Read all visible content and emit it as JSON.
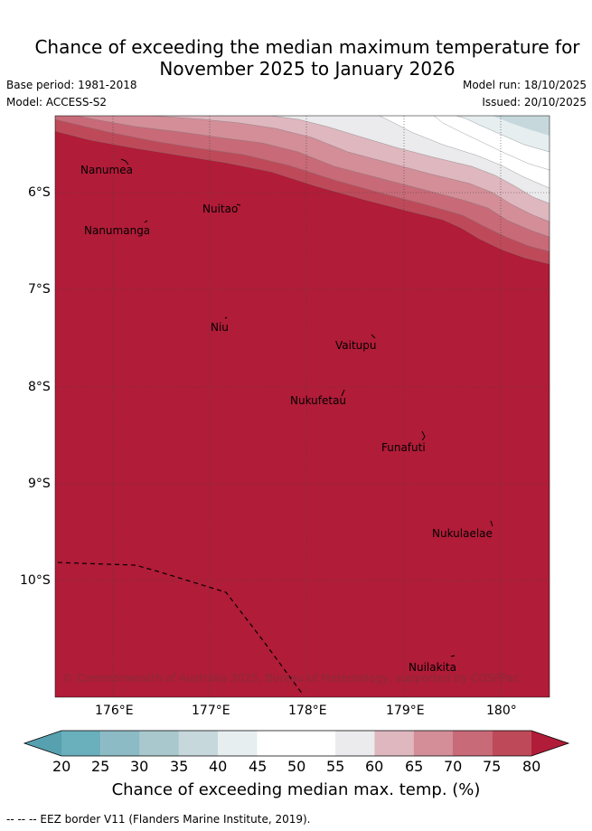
{
  "title": {
    "line1": "Chance of exceeding the median maximum temperature for",
    "line2": "November 2025 to January 2026"
  },
  "meta": {
    "base_period": "Base period: 1981-2018",
    "model": "Model: ACCESS-S2",
    "model_run": "Model run: 18/10/2025",
    "issued": "Issued: 20/10/2025"
  },
  "axes": {
    "lat_labels": [
      "6°S",
      "7°S",
      "8°S",
      "9°S",
      "10°S"
    ],
    "lon_labels": [
      "176°E",
      "177°E",
      "178°E",
      "179°E",
      "180°"
    ]
  },
  "places": {
    "nanumea": "Nanumea",
    "nuitao": "Nuitao",
    "nanumanga": "Nanumanga",
    "niu": "Niu",
    "vaitupu": "Vaitupu",
    "nukufetau": "Nukufetau",
    "funafuti": "Funafuti",
    "nukulaelae": "Nukulaelae",
    "nuilakita": "Nuilakita"
  },
  "copyright": "© Commonwealth of Australia 2025, Bureau of Meteorology, supported by COSPPac",
  "colorbar": {
    "labels": [
      "20",
      "25",
      "30",
      "35",
      "40",
      "45",
      "50",
      "55",
      "60",
      "65",
      "70",
      "75",
      "80"
    ],
    "colors": {
      "lt20": "#56a0b0",
      "b20_25": "#6aafbc",
      "b25_30": "#8cbac5",
      "b30_35": "#a8c8cd",
      "b35_40": "#c6d8dc",
      "b40_45": "#e6eef0",
      "b45_50": "#ffffff",
      "b50_55": "#ffffff",
      "b55_60": "#ebeaec",
      "b60_65": "#dfb7bf",
      "b65_70": "#d38e98",
      "b70_75": "#c86a78",
      "b75_80": "#be4a59",
      "gt80": "#b11c38"
    },
    "title": "Chance of exceeding median max. temp. (%)"
  },
  "footnote": "--  --  -- EEZ border V11 (Flanders Marine Institute, 2019)."
}
